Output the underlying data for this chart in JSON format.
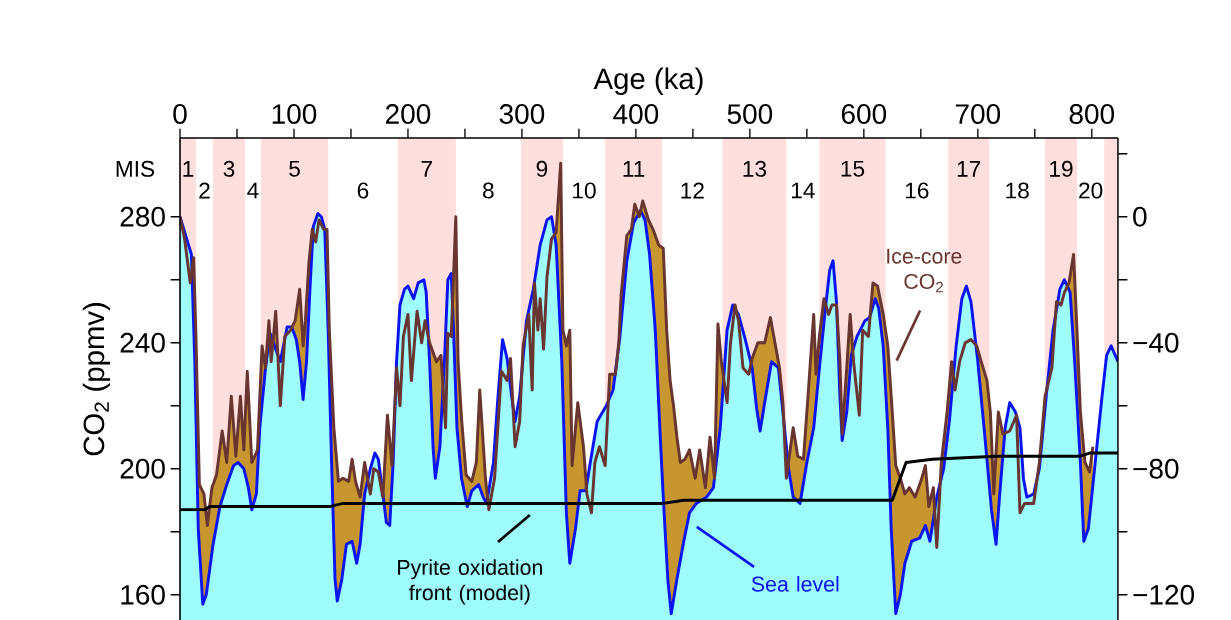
{
  "chart_data": {
    "type": "area",
    "xlabel": "Age (ka)",
    "ylabel": "CO$_{2}$ (ppmv)",
    "xlim": [
      0,
      823
    ],
    "ylim": [
      152,
      305
    ],
    "y2lim": [
      -128,
      25
    ],
    "xticks": [
      0,
      {
        "value": 50,
        "label": null
      },
      100,
      {
        "value": 150,
        "label": null
      },
      200,
      {
        "value": 250,
        "label": null
      },
      300,
      {
        "value": 350,
        "label": null
      },
      400,
      {
        "value": 450,
        "label": null
      },
      500,
      {
        "value": 550,
        "label": null
      },
      600,
      {
        "value": 650,
        "label": null
      },
      700,
      {
        "value": 750,
        "label": null
      },
      800
    ],
    "yticks": [
      160,
      {
        "value": 180,
        "label": null
      },
      200,
      {
        "value": 220,
        "label": null
      },
      240,
      {
        "value": 260,
        "label": null
      },
      280
    ],
    "y2ticks": [
      {
        "value": -120,
        "label": "−120"
      },
      {
        "value": -100,
        "label": null
      },
      {
        "value": -80,
        "label": "−80"
      },
      {
        "value": -60,
        "label": null
      },
      {
        "value": -40,
        "label": "−40"
      },
      {
        "value": -20,
        "label": null
      },
      0,
      {
        "value": 20,
        "label": null
      }
    ],
    "bands": [
      {
        "axis": "x",
        "from": 0,
        "to": 14,
        "label": "1",
        "color": "#ffdede"
      },
      {
        "axis": "x",
        "from": 29,
        "to": 57,
        "label": "3",
        "color": "#ffdede"
      },
      {
        "axis": "x",
        "from": 71,
        "to": 130,
        "label": "5",
        "color": "#ffdede"
      },
      {
        "axis": "x",
        "from": 191,
        "to": 242,
        "label": "7",
        "color": "#ffdede"
      },
      {
        "axis": "x",
        "from": 299,
        "to": 336,
        "label": "9",
        "color": "#ffdede"
      },
      {
        "axis": "x",
        "from": 373,
        "to": 423,
        "label": "11",
        "color": "#ffdede"
      },
      {
        "axis": "x",
        "from": 476,
        "to": 532,
        "label": "13",
        "color": "#ffdede"
      },
      {
        "axis": "x",
        "from": 561,
        "to": 619,
        "label": "15",
        "color": "#ffdede"
      },
      {
        "axis": "x",
        "from": 674,
        "to": 710,
        "label": "17",
        "color": "#ffdede"
      },
      {
        "axis": "x",
        "from": 759,
        "to": 787,
        "label": "19",
        "color": "#ffdede"
      },
      {
        "axis": "x",
        "from": 811,
        "to": 823,
        "color": "#ffdede"
      }
    ],
    "annotations": [
      "MIS",
      "2",
      "4",
      "6",
      "8",
      "10",
      "12",
      "14",
      "16",
      "18",
      "20"
    ],
    "series": [
      {
        "name": "Ice-core CO$_{2}$",
        "color": "#683530",
        "x": [
          0,
          4,
          9,
          12,
          14,
          17,
          21,
          24,
          28,
          32,
          37,
          41,
          45,
          49,
          53,
          56,
          59,
          63,
          68,
          72,
          75,
          78,
          80,
          84,
          88,
          92,
          97,
          101,
          105,
          108,
          110,
          113,
          116,
          119,
          122,
          126,
          129,
          131,
          135,
          139,
          143,
          148,
          151,
          154,
          158,
          162,
          167,
          170,
          174,
          178,
          182,
          186,
          190,
          193,
          196,
          200,
          203,
          208,
          212,
          215,
          219,
          225,
          229,
          233,
          235,
          238,
          242,
          244,
          247,
          251,
          256,
          260,
          263,
          268,
          271,
          276,
          282,
          287,
          290,
          294,
          298,
          301,
          306,
          309,
          311,
          314,
          316,
          319,
          322,
          326,
          330,
          334,
          336,
          339,
          342,
          344,
          349,
          354,
          357,
          361,
          364,
          368,
          373,
          377,
          382,
          385,
          387,
          392,
          396,
          399,
          403,
          406,
          411,
          415,
          420,
          424,
          427,
          430,
          433,
          436,
          439,
          443,
          447,
          452,
          456,
          461,
          465,
          469,
          472,
          475,
          480,
          483,
          487,
          490,
          494,
          499,
          502,
          507,
          513,
          518,
          522,
          526,
          529,
          532,
          538,
          542,
          547,
          551,
          556,
          558,
          561,
          565,
          569,
          572,
          576,
          579,
          581,
          585,
          588,
          591,
          596,
          599,
          604,
          608,
          612,
          617,
          621,
          624,
          628,
          632,
          636,
          640,
          645,
          650,
          654,
          657,
          661,
          664,
          668,
          673,
          677,
          680,
          684,
          689,
          694,
          699,
          703,
          708,
          711,
          714,
          718,
          722,
          728,
          734,
          737,
          741,
          749,
          754,
          759,
          765,
          769,
          773,
          776,
          780,
          784,
          787,
          790,
          794,
          798,
          801
        ],
        "values": [
          280,
          273,
          259,
          267,
          242,
          195,
          192,
          182,
          194,
          198,
          212,
          202,
          223,
          204,
          223,
          206,
          231,
          202,
          206,
          239,
          232,
          247,
          234,
          250,
          220,
          242,
          244,
          247,
          257,
          239,
          247,
          265,
          276,
          272,
          279,
          276,
          276,
          244,
          213,
          196,
          197,
          196,
          203,
          196,
          191,
          202,
          192,
          200,
          199,
          191,
          217,
          201,
          232,
          220,
          242,
          249,
          228,
          250,
          240,
          247,
          240,
          234,
          236,
          213,
          243,
          242,
          280,
          234,
          216,
          198,
          196,
          202,
          225,
          197,
          187,
          197,
          231,
          228,
          235,
          207,
          215,
          239,
          249,
          225,
          259,
          244,
          254,
          238,
          261,
          273,
          275,
          297,
          244,
          239,
          244,
          201,
          221,
          207,
          192,
          186,
          202,
          207,
          201,
          230,
          230,
          240,
          255,
          274,
          276,
          284,
          280,
          285,
          279,
          276,
          271,
          270,
          244,
          228,
          220,
          210,
          202,
          203,
          206,
          197,
          206,
          194,
          210,
          197,
          246,
          234,
          221,
          240,
          252,
          247,
          232,
          230,
          235,
          240,
          240,
          248,
          240,
          232,
          221,
          197,
          213,
          204,
          203,
          223,
          249,
          230,
          242,
          254,
          249,
          252,
          252,
          234,
          211,
          232,
          249,
          234,
          217,
          244,
          242,
          259,
          258,
          249,
          239,
          223,
          201,
          197,
          192,
          194,
          191,
          196,
          201,
          188,
          194,
          175,
          202,
          218,
          234,
          225,
          234,
          240,
          241,
          239,
          234,
          228,
          218,
          192,
          218,
          211,
          212,
          217,
          186,
          189,
          189,
          202,
          223,
          232,
          253,
          252,
          256,
          259,
          268,
          244,
          218,
          202,
          199,
          207
        ]
      },
      {
        "name": "Sea level",
        "axis": "y2",
        "color": "#0a14f0",
        "x": [
          0,
          10,
          13,
          16,
          20,
          23,
          29,
          35,
          41,
          47,
          51,
          56,
          60,
          63,
          67,
          70,
          75,
          79,
          83,
          88,
          94,
          98,
          102,
          105,
          108,
          111,
          114,
          117,
          121,
          124,
          127,
          130,
          133,
          136,
          138,
          142,
          146,
          151,
          155,
          158,
          162,
          167,
          171,
          174,
          178,
          181,
          184,
          187,
          190,
          193,
          197,
          200,
          205,
          209,
          214,
          216,
          219,
          222,
          224,
          228,
          232,
          235,
          238,
          240,
          243,
          247,
          252,
          256,
          262,
          266,
          269,
          275,
          279,
          283,
          287,
          291,
          294,
          298,
          304,
          310,
          316,
          322,
          326,
          330,
          335,
          339,
          342,
          347,
          351,
          356,
          360,
          366,
          374,
          380,
          386,
          392,
          398,
          404,
          408,
          412,
          417,
          421,
          424,
          428,
          431,
          436,
          442,
          447,
          453,
          462,
          468,
          474,
          480,
          485,
          490,
          496,
          502,
          506,
          509,
          513,
          519,
          525,
          529,
          534,
          538,
          544,
          550,
          556,
          561,
          566,
          570,
          573,
          576,
          579,
          581,
          585,
          589,
          594,
          601,
          605,
          610,
          613,
          617,
          621,
          624,
          628,
          632,
          636,
          642,
          649,
          654,
          658,
          664,
          670,
          675,
          681,
          686,
          690,
          694,
          700,
          706,
          712,
          716,
          719,
          724,
          728,
          733,
          737,
          740,
          743,
          749,
          754,
          760,
          766,
          772,
          776,
          781,
          785,
          790,
          793,
          797,
          803,
          809,
          813,
          817,
          823
        ],
        "values": [
          0,
          -12,
          -46,
          -99,
          -123,
          -120,
          -104,
          -92,
          -85,
          -79,
          -78,
          -80,
          -86,
          -93,
          -88,
          -67,
          -48,
          -37,
          -41,
          -46,
          -35,
          -35,
          -39,
          -46,
          -58,
          -46,
          -23,
          -3,
          1,
          0,
          -4,
          -36,
          -78,
          -115,
          -122,
          -115,
          -104,
          -103,
          -110,
          -104,
          -88,
          -80,
          -75,
          -77,
          -88,
          -97,
          -98,
          -78,
          -46,
          -28,
          -23,
          -22,
          -26,
          -21,
          -20,
          -24,
          -46,
          -73,
          -83,
          -73,
          -46,
          -20,
          -18,
          -36,
          -67,
          -83,
          -92,
          -87,
          -85,
          -89,
          -91,
          -78,
          -57,
          -39,
          -45,
          -57,
          -65,
          -57,
          -33,
          -23,
          -9,
          -1,
          0,
          -9,
          -46,
          -94,
          -110,
          -99,
          -87,
          -87,
          -78,
          -65,
          -60,
          -55,
          -38,
          -14,
          -2,
          2,
          -1,
          -12,
          -36,
          -67,
          -89,
          -115,
          -126,
          -115,
          -103,
          -94,
          -91,
          -89,
          -86,
          -67,
          -36,
          -28,
          -31,
          -39,
          -48,
          -61,
          -68,
          -59,
          -46,
          -48,
          -62,
          -80,
          -89,
          -91,
          -78,
          -67,
          -48,
          -30,
          -17,
          -14,
          -27,
          -57,
          -71,
          -62,
          -44,
          -38,
          -33,
          -32,
          -26,
          -29,
          -41,
          -67,
          -99,
          -126,
          -120,
          -110,
          -103,
          -102,
          -98,
          -103,
          -89,
          -80,
          -65,
          -41,
          -26,
          -22,
          -27,
          -46,
          -69,
          -93,
          -104,
          -89,
          -67,
          -59,
          -62,
          -67,
          -83,
          -89,
          -88,
          -80,
          -57,
          -36,
          -23,
          -20,
          -24,
          -46,
          -78,
          -103,
          -99,
          -78,
          -57,
          -44,
          -41,
          -46
        ]
      },
      {
        "name": "Pyrite oxidation front (model)",
        "type": "line",
        "axis": "y2",
        "color": "#000000",
        "x": [
          0,
          22,
          26,
          131,
          143,
          424,
          442,
          625,
          637,
          660,
          716,
          790,
          798,
          823
        ],
        "values": [
          -93,
          -93,
          -92,
          -92,
          -91,
          -91,
          -90,
          -90,
          -78,
          -77,
          -76,
          -76,
          -75,
          -75
        ]
      }
    ]
  }
}
